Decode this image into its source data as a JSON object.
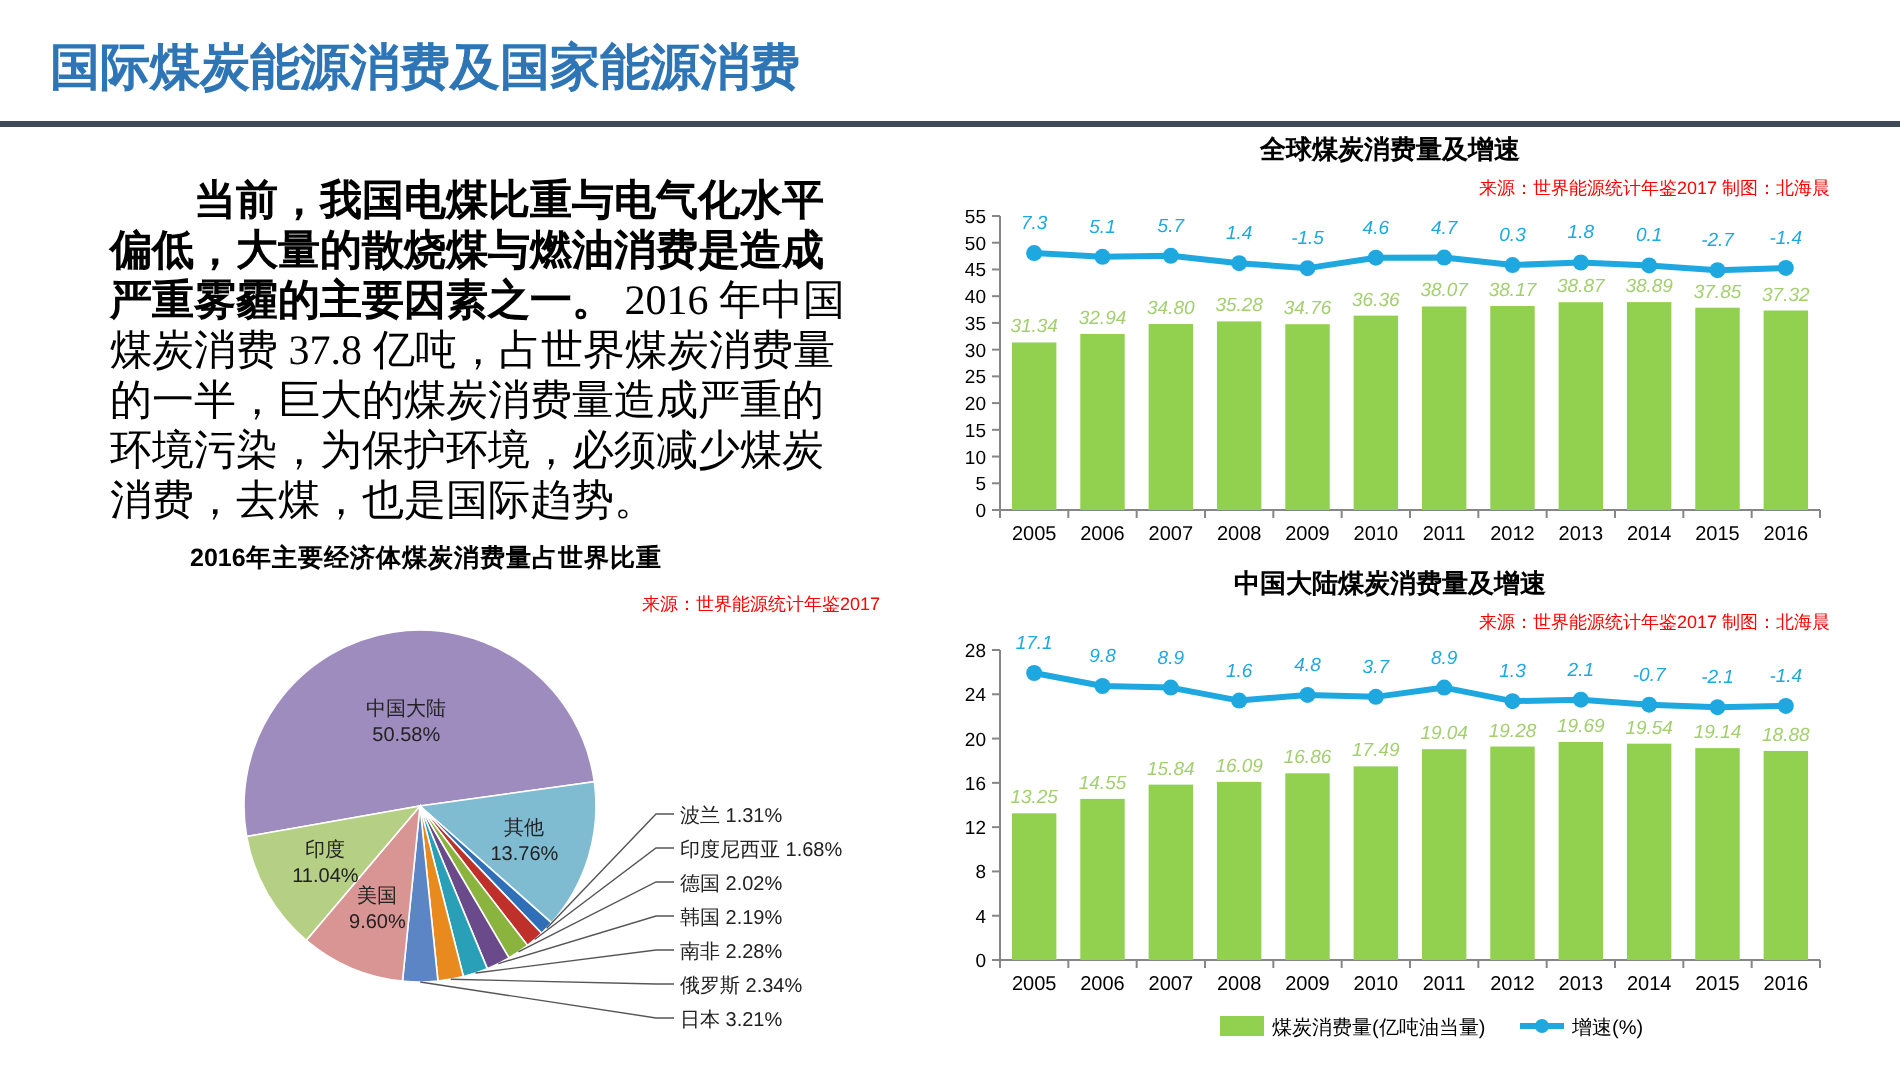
{
  "chart_data": [
    {
      "type": "other",
      "title": "国际煤炭能源消费及国家能源消费",
      "annotations": [
        "**当前，我国电煤比重与电气化水平偏低，大量的散烧煤与燃油消费是造成严重雾霾的主要因素之一。** 2016 年中国煤炭消费 37.8 亿吨，占世界煤炭消费量的一半，巨大的煤炭消费量造成严重的环境污染，为保护环境，必须减少煤炭消费，去煤，也是国际趋势。"
      ]
    },
    {
      "type": "bar",
      "title": "全球煤炭消费量及增速",
      "annotations": [
        "来源：世界能源统计年鉴2017 制图：北海晨"
      ],
      "categories": [
        "2005",
        "2006",
        "2007",
        "2008",
        "2009",
        "2010",
        "2011",
        "2012",
        "2013",
        "2014",
        "2015",
        "2016"
      ],
      "ylim": [
        0,
        55
      ],
      "yticks": [
        0,
        5,
        10,
        15,
        20,
        25,
        30,
        35,
        40,
        45,
        50,
        55
      ],
      "y2lim": [
        -143,
        29
      ],
      "marker": "circle",
      "series": [
        {
          "type": "bar",
          "color": "#92d050",
          "values": [
            31.34,
            32.94,
            34.8,
            35.28,
            34.76,
            36.36,
            38.07,
            38.17,
            38.87,
            38.89,
            37.85,
            37.32
          ],
          "value_labels": [
            "31.34",
            "32.94",
            "34.80",
            "35.28",
            "34.76",
            "36.36",
            "38.07",
            "38.17",
            "38.87",
            "38.89",
            "37.85",
            "37.32"
          ]
        },
        {
          "type": "line",
          "axis": "y2",
          "color": "#1fa8e0",
          "values": [
            7.3,
            5.1,
            5.7,
            1.4,
            -1.5,
            4.6,
            4.7,
            0.3,
            1.8,
            0.1,
            -2.7,
            -1.4
          ],
          "value_labels": [
            "7.3",
            "5.1",
            "5.7",
            "1.4",
            "-1.5",
            "4.6",
            "4.7",
            "0.3",
            "1.8",
            "0.1",
            "-2.7",
            "-1.4"
          ]
        }
      ]
    },
    {
      "type": "bar",
      "title": "中国大陆煤炭消费量及增速",
      "annotations": [
        "来源：世界能源统计年鉴2017 制图：北海晨"
      ],
      "categories": [
        "2005",
        "2006",
        "2007",
        "2008",
        "2009",
        "2010",
        "2011",
        "2012",
        "2013",
        "2014",
        "2015",
        "2016"
      ],
      "ylim": [
        0,
        28
      ],
      "yticks": [
        0,
        4,
        8,
        12,
        16,
        20,
        24,
        28
      ],
      "y2lim": [
        -144,
        30
      ],
      "marker": "circle",
      "legend": "bottom",
      "series": [
        {
          "type": "bar",
          "name": "煤炭消费量(亿吨油当量)",
          "color": "#92d050",
          "values": [
            13.25,
            14.55,
            15.84,
            16.09,
            16.86,
            17.49,
            19.04,
            19.28,
            19.69,
            19.54,
            19.14,
            18.88
          ],
          "value_labels": [
            "13.25",
            "14.55",
            "15.84",
            "16.09",
            "16.86",
            "17.49",
            "19.04",
            "19.28",
            "19.69",
            "19.54",
            "19.14",
            "18.88"
          ]
        },
        {
          "type": "line",
          "axis": "y2",
          "name": "增速(%)",
          "color": "#1fa8e0",
          "values": [
            17.1,
            9.8,
            8.9,
            1.6,
            4.8,
            3.7,
            8.9,
            1.3,
            2.1,
            -0.7,
            -2.1,
            -1.4
          ],
          "value_labels": [
            "17.1",
            "9.8",
            "8.9",
            "1.6",
            "4.8",
            "3.7",
            "8.9",
            "1.3",
            "2.1",
            "-0.7",
            "-2.1",
            "-1.4"
          ]
        }
      ]
    },
    {
      "type": "pie",
      "title": "2016年主要经济体煤炭消费量占世界比重",
      "annotations": [
        "来源：世界能源统计年鉴2017"
      ],
      "categories": [
        "中国大陆",
        "其他",
        "波兰",
        "印度尼西亚",
        "德国",
        "韩国",
        "南非",
        "俄罗斯",
        "日本",
        "美国",
        "印度"
      ],
      "values": [
        50.58,
        13.76,
        1.31,
        1.68,
        2.02,
        2.19,
        2.28,
        2.34,
        3.21,
        9.6,
        11.04
      ],
      "value_labels": [
        "50.58%",
        "13.76%",
        "1.31%",
        "1.68%",
        "2.02%",
        "2.19%",
        "2.28%",
        "2.34%",
        "3.21%",
        "9.60%",
        "11.04%"
      ],
      "colors": [
        "#9e8cbf",
        "#7fbcd2",
        "#2e6fb7",
        "#c0302b",
        "#8ab43e",
        "#6b4a8c",
        "#2a9fb8",
        "#e88a1e",
        "#5b85c5",
        "#d99594",
        "#b5cf85"
      ]
    }
  ]
}
